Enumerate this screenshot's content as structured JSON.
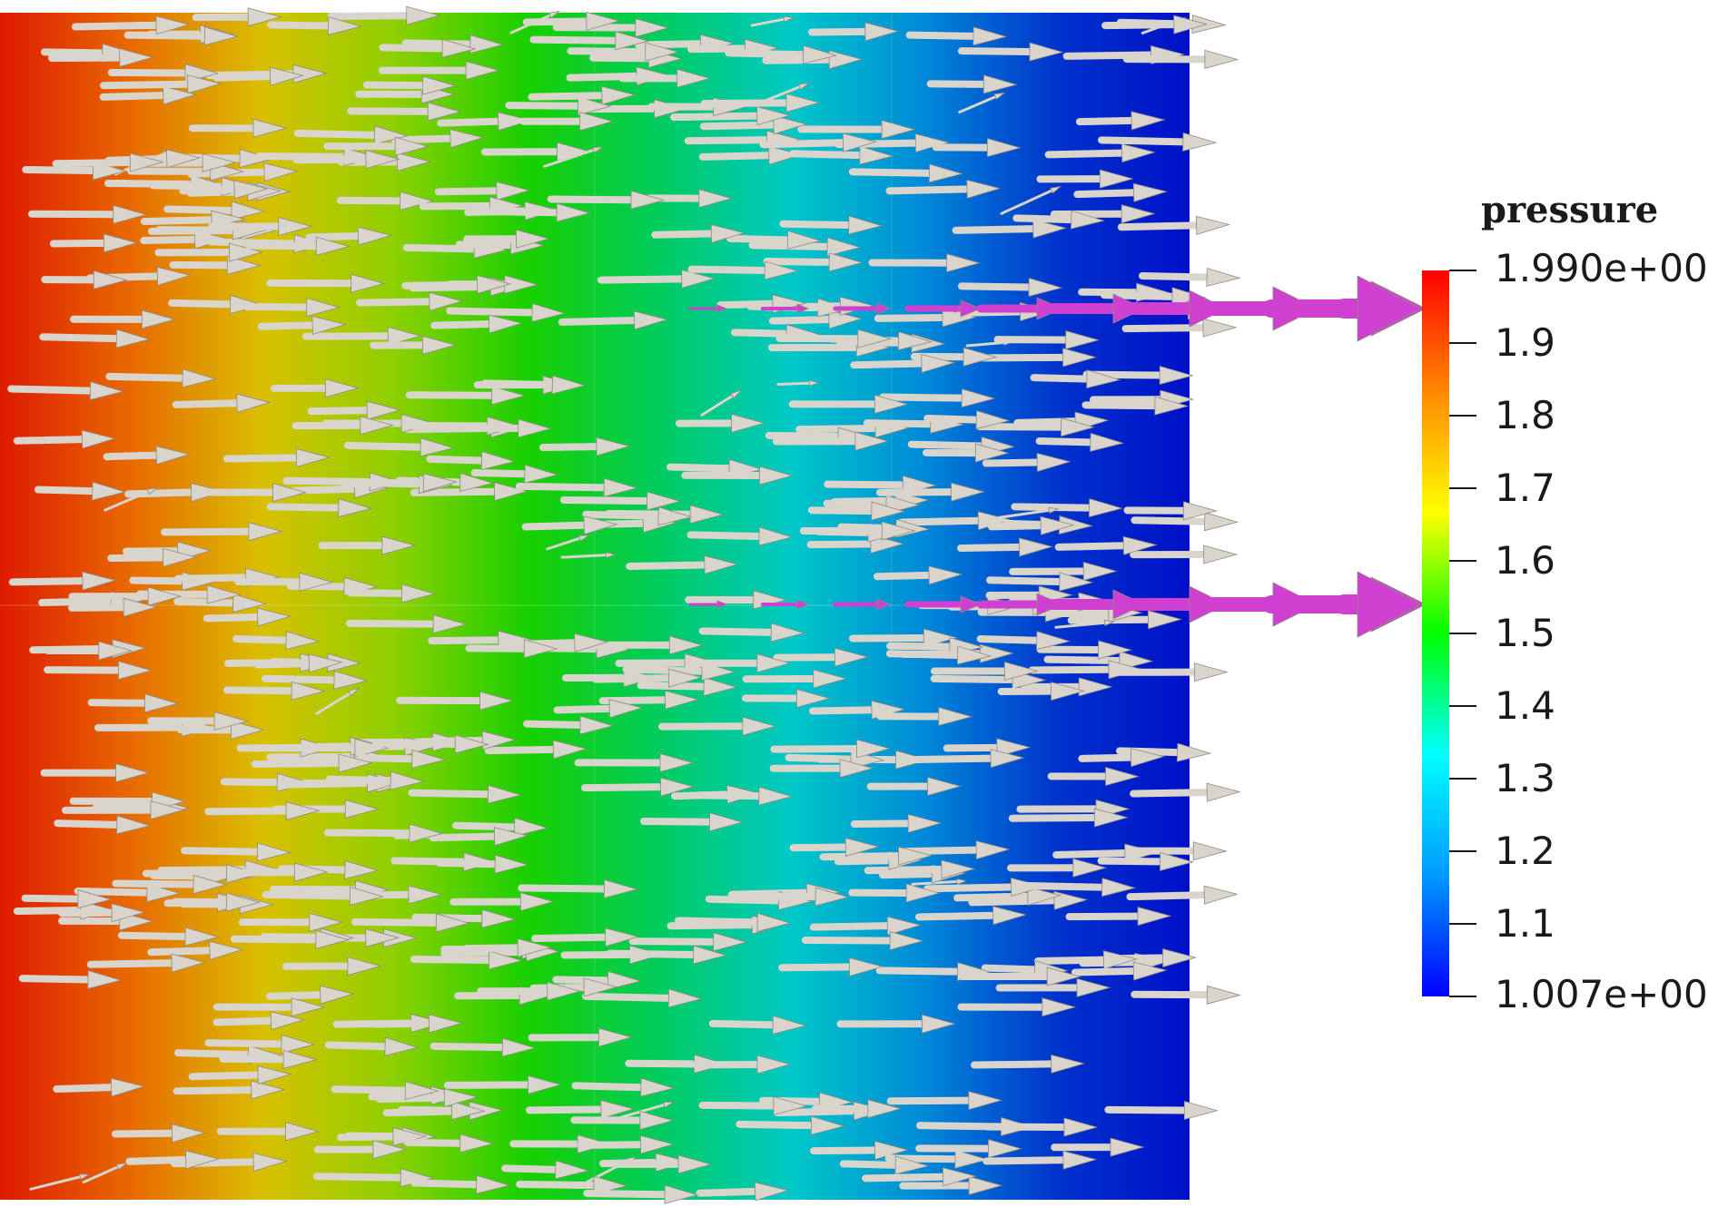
{
  "colorbar": {
    "title": "pressure",
    "max_label": "1.990e+00",
    "min_label": "1.007e+00",
    "ticks": [
      "1.9",
      "1.8",
      "1.7",
      "1.6",
      "1.5",
      "1.4",
      "1.3",
      "1.2",
      "1.1"
    ],
    "colors": [
      "#0000ff",
      "#0099ff",
      "#00ffff",
      "#00ff00",
      "#ffff00",
      "#ff8800",
      "#ff0000"
    ]
  },
  "field": {
    "colors": [
      "#dd1a00",
      "#e86a00",
      "#d8c000",
      "#8cd000",
      "#18d000",
      "#00cc60",
      "#00c8c8",
      "#0088d8",
      "#0033cc",
      "#0010c8"
    ],
    "arrow_color": "#d9d4cc",
    "highlight_color": "#d040d0"
  }
}
